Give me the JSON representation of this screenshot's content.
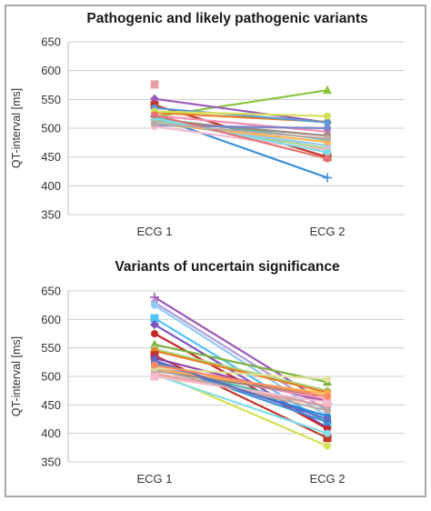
{
  "chart_data": [
    {
      "type": "line",
      "title": "Pathogenic and likely pathogenic variants",
      "ylabel": "QT-interval [ms]",
      "xlabel": "",
      "categories": [
        "ECG 1",
        "ECG 2"
      ],
      "ylim": [
        350,
        650
      ],
      "yticks": [
        350,
        400,
        450,
        500,
        550,
        600,
        650
      ],
      "grid": true,
      "series": [
        {
          "color": "#3a8fd8",
          "marker": "plus",
          "values": [
            520,
            414
          ]
        },
        {
          "color": "#8cc63f",
          "marker": "triangle",
          "values": [
            520,
            566
          ]
        },
        {
          "color": "#9b59b6",
          "marker": "diamond",
          "values": [
            551,
            510
          ]
        },
        {
          "color": "#c0392b",
          "marker": "square",
          "values": [
            540,
            450
          ]
        },
        {
          "color": "#e67e22",
          "marker": "circle",
          "values": [
            527,
            511
          ]
        },
        {
          "color": "#5a9bd5",
          "marker": "circle",
          "values": [
            535,
            510
          ]
        },
        {
          "color": "#d4e157",
          "marker": "circle",
          "values": [
            529,
            521
          ]
        },
        {
          "color": "#f48fb1",
          "marker": "circle",
          "values": [
            522,
            494
          ]
        },
        {
          "color": "#4db6ac",
          "marker": "circle",
          "values": [
            517,
            480
          ]
        },
        {
          "color": "#a1887f",
          "marker": "circle",
          "values": [
            514,
            487
          ]
        },
        {
          "color": "#aed581",
          "marker": "circle",
          "values": [
            512,
            465
          ]
        },
        {
          "color": "#90caf9",
          "marker": "circle",
          "values": [
            510,
            470
          ]
        },
        {
          "color": "#ffb74d",
          "marker": "circle",
          "values": [
            508,
            476
          ]
        },
        {
          "color": "#7986cb",
          "marker": "circle",
          "values": [
            505,
            500
          ]
        },
        {
          "color": "#f8bbd0",
          "marker": "circle",
          "values": [
            503,
            462
          ]
        },
        {
          "color": "#80deea",
          "marker": "circle",
          "values": [
            517,
            458
          ]
        },
        {
          "color": "#e57373",
          "marker": "circle",
          "values": [
            523,
            447
          ]
        },
        {
          "color": "#bcaaa4",
          "marker": "circle",
          "values": [
            508,
            482
          ]
        },
        {
          "color": "#e8a0a8",
          "marker": "square",
          "values": [
            576,
            null
          ]
        }
      ]
    },
    {
      "type": "line",
      "title": "Variants of uncertain significance",
      "ylabel": "QT-interval [ms]",
      "xlabel": "",
      "categories": [
        "ECG 1",
        "ECG 2"
      ],
      "ylim": [
        350,
        650
      ],
      "yticks": [
        350,
        400,
        450,
        500,
        550,
        600,
        650
      ],
      "grid": true,
      "series": [
        {
          "color": "#9b59b6",
          "marker": "plus",
          "values": [
            639,
            452
          ]
        },
        {
          "color": "#b39ddb",
          "marker": "circle",
          "values": [
            630,
            440
          ]
        },
        {
          "color": "#90caf9",
          "marker": "circle",
          "values": [
            625,
            430
          ]
        },
        {
          "color": "#4fc3f7",
          "marker": "square",
          "values": [
            602,
            418
          ]
        },
        {
          "color": "#7e57c2",
          "marker": "diamond",
          "values": [
            591,
            410
          ]
        },
        {
          "color": "#c62828",
          "marker": "circle",
          "values": [
            575,
            408
          ]
        },
        {
          "color": "#7cb342",
          "marker": "triangle",
          "values": [
            556,
            490
          ]
        },
        {
          "color": "#aed581",
          "marker": "circle",
          "values": [
            548,
            475
          ]
        },
        {
          "color": "#e67e22",
          "marker": "circle",
          "values": [
            545,
            472
          ]
        },
        {
          "color": "#c0392b",
          "marker": "square",
          "values": [
            537,
            392
          ]
        },
        {
          "color": "#8e44ad",
          "marker": "circle",
          "values": [
            532,
            455
          ]
        },
        {
          "color": "#3a8fd8",
          "marker": "circle",
          "values": [
            525,
            420
          ]
        },
        {
          "color": "#1e88e5",
          "marker": "circle",
          "values": [
            522,
            430
          ]
        },
        {
          "color": "#4db6ac",
          "marker": "circle",
          "values": [
            518,
            446
          ]
        },
        {
          "color": "#f48fb1",
          "marker": "circle",
          "values": [
            515,
            460
          ]
        },
        {
          "color": "#ffb74d",
          "marker": "circle",
          "values": [
            512,
            470
          ]
        },
        {
          "color": "#a1887f",
          "marker": "circle",
          "values": [
            510,
            465
          ]
        },
        {
          "color": "#d4e157",
          "marker": "circle",
          "values": [
            508,
            378
          ]
        },
        {
          "color": "#ef9a9a",
          "marker": "circle",
          "values": [
            505,
            448
          ]
        },
        {
          "color": "#80deea",
          "marker": "circle",
          "values": [
            503,
            400
          ]
        },
        {
          "color": "#f8bbd0",
          "marker": "square",
          "values": [
            500,
            455
          ]
        },
        {
          "color": "#bcaaa4",
          "marker": "circle",
          "values": [
            512,
            440
          ]
        },
        {
          "color": "#5c6bc0",
          "marker": "circle",
          "values": [
            528,
            425
          ]
        },
        {
          "color": "#e0e0a0",
          "marker": "circle",
          "values": [
            515,
            495
          ]
        },
        {
          "color": "#ff8a65",
          "marker": "circle",
          "values": [
            520,
            465
          ]
        }
      ]
    }
  ]
}
